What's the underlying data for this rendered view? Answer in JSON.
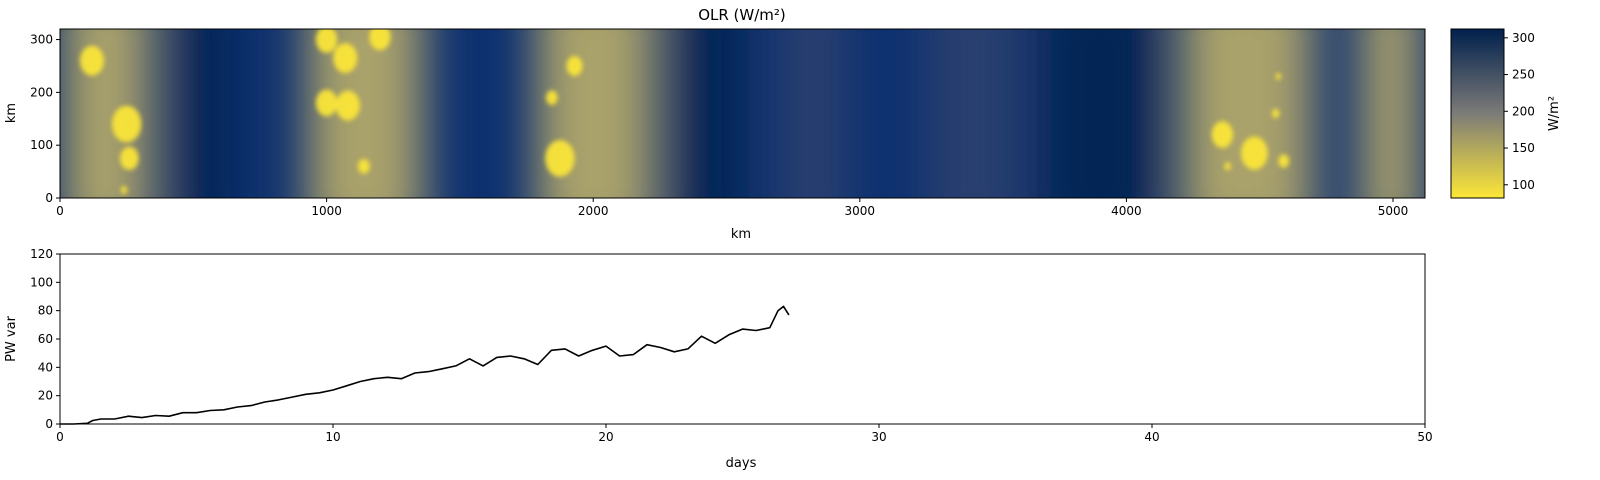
{
  "chart_data": [
    {
      "type": "heatmap",
      "title": "OLR (W/m²)",
      "xlabel": "km",
      "ylabel": "km",
      "xlim": [
        0,
        5120
      ],
      "ylim": [
        0,
        320
      ],
      "xticks": [
        0,
        1000,
        2000,
        3000,
        4000,
        5000
      ],
      "yticks": [
        0,
        100,
        200,
        300
      ],
      "colormap": "cividis (reversed): low OLR yellow, high OLR dark blue",
      "colorbar": {
        "label": "W/m²",
        "range": [
          82,
          312
        ],
        "ticks": [
          100,
          150,
          200,
          250,
          300
        ],
        "colors": {
          "low": "#fde737",
          "mid": "#7c7b78",
          "high": "#00204c"
        }
      },
      "convective_bands_km": [
        {
          "x_start": 0,
          "x_end": 360
        },
        {
          "x_start": 920,
          "x_end": 1380
        },
        {
          "x_start": 1780,
          "x_end": 2250
        },
        {
          "x_start": 4200,
          "x_end": 4720
        },
        {
          "x_start": 4870,
          "x_end": 5120
        }
      ],
      "cold_cloud_cores": [
        {
          "x_km": 120,
          "y_km": 260,
          "r_km": 45
        },
        {
          "x_km": 250,
          "y_km": 140,
          "r_km": 55
        },
        {
          "x_km": 260,
          "y_km": 75,
          "r_km": 35
        },
        {
          "x_km": 240,
          "y_km": 15,
          "r_km": 12
        },
        {
          "x_km": 1000,
          "y_km": 300,
          "r_km": 40
        },
        {
          "x_km": 1070,
          "y_km": 265,
          "r_km": 45
        },
        {
          "x_km": 1000,
          "y_km": 180,
          "r_km": 40
        },
        {
          "x_km": 1080,
          "y_km": 175,
          "r_km": 45
        },
        {
          "x_km": 1140,
          "y_km": 60,
          "r_km": 22
        },
        {
          "x_km": 1200,
          "y_km": 305,
          "r_km": 40
        },
        {
          "x_km": 1930,
          "y_km": 250,
          "r_km": 30
        },
        {
          "x_km": 1845,
          "y_km": 190,
          "r_km": 22
        },
        {
          "x_km": 1875,
          "y_km": 75,
          "r_km": 55
        },
        {
          "x_km": 4360,
          "y_km": 120,
          "r_km": 40
        },
        {
          "x_km": 4480,
          "y_km": 85,
          "r_km": 50
        },
        {
          "x_km": 4560,
          "y_km": 160,
          "r_km": 14
        },
        {
          "x_km": 4590,
          "y_km": 70,
          "r_km": 20
        },
        {
          "x_km": 4380,
          "y_km": 60,
          "r_km": 12
        },
        {
          "x_km": 4570,
          "y_km": 230,
          "r_km": 10
        }
      ]
    },
    {
      "type": "line",
      "title": "",
      "xlabel": "days",
      "ylabel": "PW var",
      "xlim": [
        0,
        50
      ],
      "ylim": [
        0,
        120
      ],
      "xticks": [
        0,
        10,
        20,
        30,
        40,
        50
      ],
      "yticks": [
        0,
        20,
        40,
        60,
        80,
        100,
        120
      ],
      "series": [
        {
          "color": "#000000",
          "x": [
            0,
            0.5,
            1.0,
            1.2,
            1.5,
            2.0,
            2.5,
            3.0,
            3.5,
            4.0,
            4.5,
            5.0,
            5.5,
            6.0,
            6.5,
            7.0,
            7.5,
            8.0,
            8.5,
            9.0,
            9.5,
            10.0,
            10.5,
            11.0,
            11.5,
            12.0,
            12.5,
            13.0,
            13.5,
            14.0,
            14.5,
            15.0,
            15.5,
            16.0,
            16.5,
            17.0,
            17.5,
            18.0,
            18.5,
            19.0,
            19.5,
            20.0,
            20.5,
            21.0,
            21.5,
            22.0,
            22.5,
            23.0,
            23.5,
            24.0,
            24.5,
            25.0,
            25.5,
            26.0,
            26.3,
            26.5,
            26.7
          ],
          "y": [
            0,
            0,
            0.5,
            2.5,
            3.5,
            3.5,
            5.5,
            4.5,
            6,
            5.5,
            8,
            8,
            9.5,
            10,
            12,
            13,
            15.5,
            17,
            19,
            21,
            22,
            24,
            27,
            30,
            32,
            33,
            32,
            36,
            37,
            39,
            41,
            46,
            41,
            47,
            48,
            46,
            42,
            52,
            53,
            48,
            52,
            55,
            48,
            49,
            56,
            54,
            51,
            53,
            62,
            57,
            63,
            67,
            66,
            68,
            80,
            83,
            77
          ]
        }
      ]
    }
  ]
}
